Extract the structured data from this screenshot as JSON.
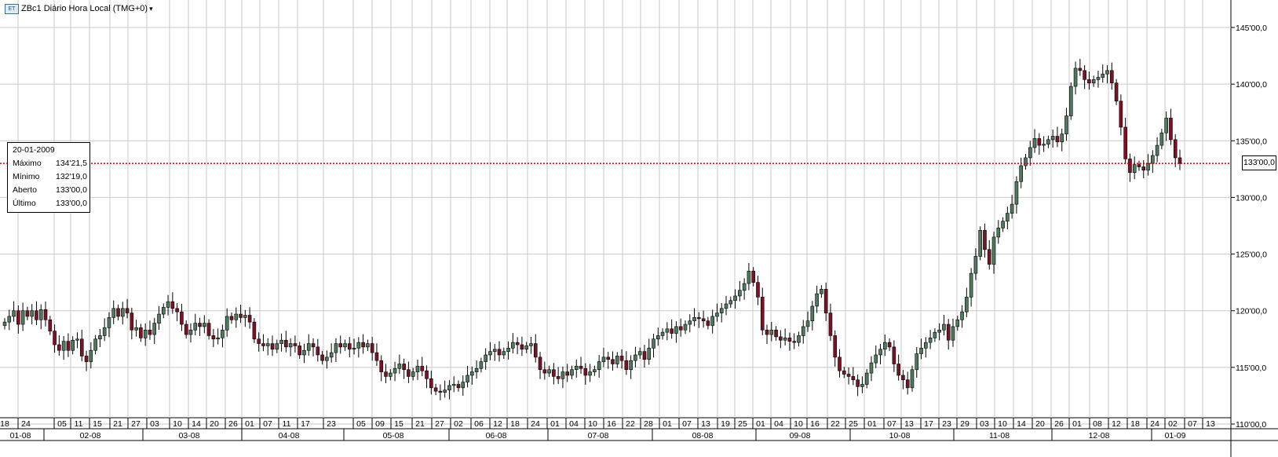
{
  "legend": {
    "icon": "chart-icon",
    "label": "ZBc1 Diário Hora Local (TMG+0)"
  },
  "info_box": {
    "date": "20-01-2009",
    "rows": [
      {
        "label": "Máximo",
        "value": "134'21,5"
      },
      {
        "label": "Mínimo",
        "value": "132'19,0"
      },
      {
        "label": "Aberto",
        "value": "133'00,0"
      },
      {
        "label": "Último",
        "value": "133'00,0"
      }
    ]
  },
  "last_price": {
    "value": 133,
    "label": "133'00,0",
    "color": "#cc0000"
  },
  "colors": {
    "up": "#4f7a5e",
    "down": "#7a1424",
    "grid": "#c9c9c9",
    "last_line": "#cc0000"
  },
  "chart_data": {
    "type": "candlestick",
    "ylim": [
      108.5,
      146.5
    ],
    "yticks": [
      {
        "v": 110,
        "label": "110'00,0"
      },
      {
        "v": 115,
        "label": "115'00,0"
      },
      {
        "v": 120,
        "label": "120'00,0"
      },
      {
        "v": 125,
        "label": "125'00,0"
      },
      {
        "v": 130,
        "label": "130'00,0"
      },
      {
        "v": 135,
        "label": "135'00,0"
      },
      {
        "v": 140,
        "label": "140'00,0"
      },
      {
        "v": 145,
        "label": "145'00,0"
      }
    ],
    "day_labels": [
      "18",
      "24",
      "05",
      "11",
      "15",
      "21",
      "27",
      "03",
      "10",
      "14",
      "20",
      "26",
      "01",
      "07",
      "11",
      "17",
      "23",
      "05",
      "09",
      "15",
      "21",
      "27",
      "02",
      "06",
      "12",
      "18",
      "24",
      "01",
      "04",
      "10",
      "16",
      "22",
      "28",
      "01",
      "07",
      "13",
      "19",
      "25",
      "01",
      "04",
      "10",
      "16",
      "22",
      "25",
      "01",
      "07",
      "13",
      "17",
      "23",
      "29",
      "03",
      "10",
      "14",
      "20",
      "26",
      "01",
      "08",
      "12",
      "18",
      "24",
      "02",
      "07",
      "13"
    ],
    "month_labels": [
      "01-08",
      "02-08",
      "03-08",
      "04-08",
      "05-08",
      "06-08",
      "07-08",
      "08-08",
      "09-08",
      "10-08",
      "11-08",
      "12-08",
      "01-09"
    ],
    "series": [
      {
        "name": "ZBc1",
        "close": [
          119,
          119.5,
          120,
          118.8,
          120,
          119.5,
          120,
          119.2,
          120.1,
          119.2,
          118.2,
          117,
          116.5,
          117.3,
          116.5,
          117.4,
          117.5,
          116,
          115.5,
          116.5,
          117.5,
          117.8,
          118.5,
          119.4,
          120.2,
          119.5,
          120.2,
          119.8,
          118.3,
          118.5,
          117.6,
          118.3,
          117.9,
          118.9,
          119.7,
          120.3,
          120.8,
          120.2,
          119.9,
          118.8,
          117.9,
          118.3,
          118.9,
          118.6,
          118.9,
          117.8,
          117.5,
          117.6,
          118.3,
          119.5,
          119.2,
          119.7,
          119.4,
          119.6,
          119,
          117.5,
          117.1,
          116.9,
          117.1,
          116.6,
          117.1,
          117.4,
          116.8,
          117.1,
          116.9,
          116.1,
          116.5,
          117.1,
          116.8,
          116.1,
          115.6,
          115.9,
          116.3,
          117.1,
          116.8,
          117.1,
          116.6,
          116.7,
          117.2,
          116.8,
          117.1,
          116.3,
          115.6,
          114.6,
          114.2,
          114.5,
          114.9,
          115.3,
          114.8,
          114.2,
          114.6,
          115.1,
          114.7,
          114,
          113.2,
          112.9,
          112.8,
          113,
          113.4,
          113.5,
          113.2,
          113.7,
          114.3,
          114.6,
          114.9,
          115.5,
          116.1,
          116.4,
          116.6,
          116.1,
          116.4,
          116.7,
          117.2,
          117,
          116.6,
          116.9,
          117.1,
          115.9,
          114.8,
          114.5,
          114.8,
          114.2,
          114,
          114.6,
          114.3,
          114.8,
          115.1,
          114.9,
          114.3,
          114.6,
          114.8,
          115.5,
          115.9,
          115.7,
          115.3,
          116,
          115.6,
          114.8,
          115.6,
          116.1,
          116.4,
          115.7,
          116.7,
          117.5,
          117.8,
          118.1,
          118.4,
          118,
          118.6,
          118.3,
          118.8,
          119.1,
          119.4,
          119.3,
          119.1,
          118.7,
          119.5,
          119.8,
          120.2,
          120.6,
          120.9,
          121.3,
          121.8,
          122.4,
          123.5,
          122.5,
          121.2,
          118.3,
          117.9,
          118.3,
          117.7,
          117.4,
          117.6,
          117.3,
          117.2,
          117.8,
          118.6,
          119.1,
          120.4,
          121.5,
          121.9,
          119.8,
          117.8,
          115.9,
          114.7,
          114.4,
          114.2,
          113.9,
          113.3,
          113.5,
          114.5,
          115.4,
          116.1,
          116.6,
          117.2,
          116.8,
          115.3,
          114.3,
          113.9,
          113.2,
          114.8,
          116.2,
          116.7,
          117.2,
          117.6,
          118.1,
          118.3,
          118.8,
          117.4,
          118.6,
          119.2,
          119.9,
          121.2,
          123.3,
          124.8,
          127.1,
          125.4,
          124.1,
          126.5,
          127.3,
          127.9,
          128.6,
          129.4,
          131.4,
          132.8,
          133.5,
          134.4,
          135.2,
          134.6,
          134.7,
          135.1,
          135.4,
          134.9,
          135.6,
          137.2,
          139.8,
          141.4,
          141.2,
          140.4,
          140.1,
          140.4,
          140.6,
          140.9,
          141.2,
          140.1,
          138.5,
          136.2,
          133.4,
          132.2,
          132.9,
          132.7,
          132.4,
          133,
          133.7,
          134.6,
          135.7,
          137,
          135.1,
          133.5,
          133
        ]
      }
    ]
  }
}
